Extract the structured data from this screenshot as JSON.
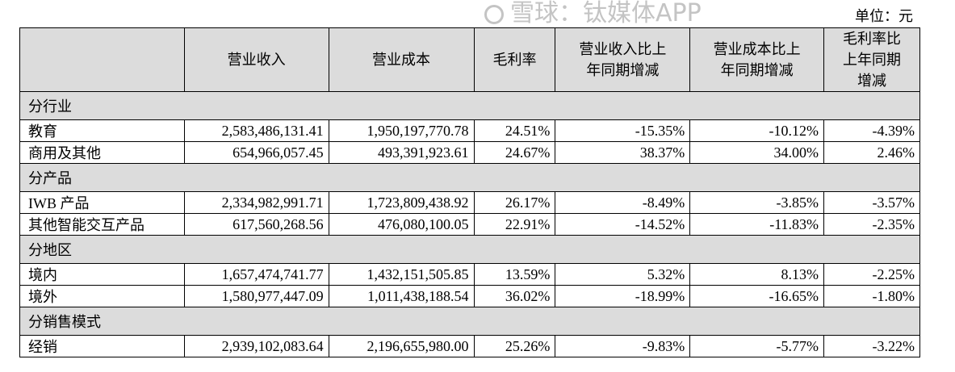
{
  "unit": "单位：元",
  "headers": [
    "",
    "营业收入",
    "营业成本",
    "毛利率",
    "营业收入比上年同期增减",
    "营业成本比上年同期增减",
    "毛利率比上年同期增减"
  ],
  "sections": [
    {
      "title": "分行业",
      "rows": [
        [
          "教育",
          "2,583,486,131.41",
          "1,950,197,770.78",
          "24.51%",
          "-15.35%",
          "-10.12%",
          "-4.39%"
        ],
        [
          "商用及其他",
          "654,966,057.45",
          "493,391,923.61",
          "24.67%",
          "38.37%",
          "34.00%",
          "2.46%"
        ]
      ]
    },
    {
      "title": "分产品",
      "rows": [
        [
          "IWB 产品",
          "2,334,982,991.71",
          "1,723,809,438.92",
          "26.17%",
          "-8.49%",
          "-3.85%",
          "-3.57%"
        ],
        [
          "其他智能交互产品",
          "617,560,268.56",
          "476,080,100.05",
          "22.91%",
          "-14.52%",
          "-11.83%",
          "-2.35%"
        ]
      ]
    },
    {
      "title": "分地区",
      "rows": [
        [
          "境内",
          "1,657,474,741.77",
          "1,432,151,505.85",
          "13.59%",
          "5.32%",
          "8.13%",
          "-2.25%"
        ],
        [
          "境外",
          "1,580,977,447.09",
          "1,011,438,188.54",
          "36.02%",
          "-18.99%",
          "-16.65%",
          "-1.80%"
        ]
      ]
    },
    {
      "title": "分销售模式",
      "rows": [
        [
          "经销",
          "2,939,102,083.64",
          "2,196,655,980.00",
          "25.26%",
          "-9.83%",
          "-5.77%",
          "-3.22%"
        ]
      ]
    }
  ],
  "watermark": "雪球：钛媒体APP"
}
